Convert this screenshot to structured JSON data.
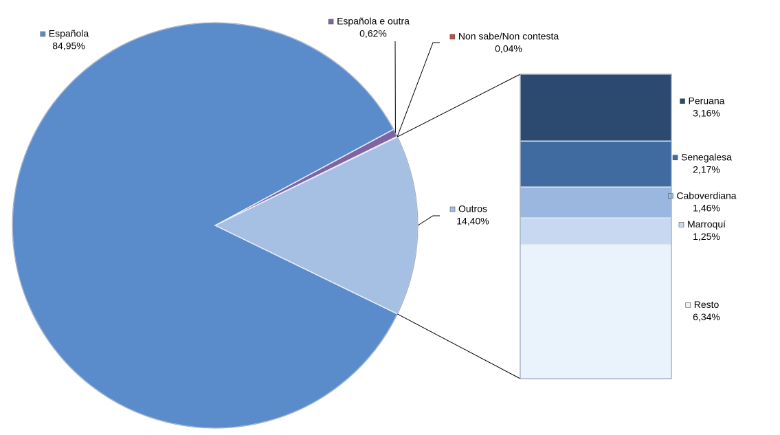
{
  "chart_data": [
    {
      "type": "pie",
      "categories": [
        "Española",
        "Española e outra",
        "Non sabe/Non contesta",
        "Outros"
      ],
      "values": [
        84.95,
        0.62,
        0.04,
        14.4
      ],
      "value_labels": [
        "84,95%",
        "0,62%",
        "0,04%",
        "14,40%"
      ],
      "colors": [
        "#5a8bcb",
        "#8064a2",
        "#c0504d",
        "#a6c0e4"
      ]
    },
    {
      "type": "bar",
      "stacked": true,
      "categories": [
        "Peruana",
        "Senegalesa",
        "Caboverdiana",
        "Marroquí",
        "Resto"
      ],
      "values": [
        3.16,
        2.17,
        1.46,
        1.25,
        6.34
      ],
      "value_labels": [
        "3,16%",
        "2,17%",
        "1,46%",
        "1,25%",
        "6,34%"
      ],
      "colors": [
        "#2c4a6f",
        "#3f6ba1",
        "#9ab7e0",
        "#c6d9f0",
        "#eaf2fb"
      ]
    }
  ]
}
